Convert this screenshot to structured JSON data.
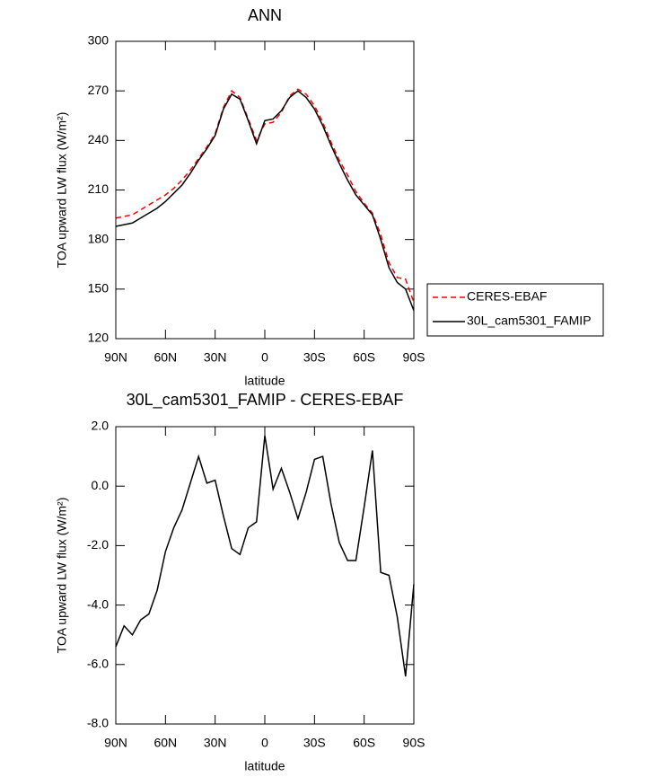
{
  "chart_data": [
    {
      "type": "line",
      "title": "ANN",
      "xlabel": "latitude",
      "ylabel": "TOA upward LW flux (W/m²)",
      "x": [
        90,
        85,
        80,
        75,
        70,
        65,
        60,
        55,
        50,
        45,
        40,
        35,
        30,
        25,
        20,
        15,
        10,
        5,
        0,
        -5,
        -10,
        -15,
        -20,
        -25,
        -30,
        -35,
        -40,
        -45,
        -50,
        -55,
        -60,
        -65,
        -70,
        -75,
        -80,
        -85,
        -90
      ],
      "series": [
        {
          "name": "CERES-EBAF",
          "color": "#ff0000",
          "style": "dashed",
          "values": [
            193,
            194,
            195,
            198,
            201,
            204,
            207,
            211,
            216,
            222,
            229,
            236,
            244,
            260,
            270,
            266,
            253,
            240,
            250,
            251,
            257,
            267,
            271,
            268,
            261,
            251,
            239,
            228,
            219,
            209,
            202,
            196,
            183,
            166,
            157,
            156,
            142
          ]
        },
        {
          "name": "30L_cam5301_FAMIP",
          "color": "#000000",
          "style": "solid",
          "values": [
            188,
            189,
            190,
            193,
            196,
            199,
            203,
            208,
            213,
            220,
            228,
            235,
            243,
            259,
            268,
            265,
            252,
            238,
            252,
            253,
            258,
            266,
            270,
            266,
            259,
            249,
            237,
            226,
            216,
            207,
            201,
            195,
            180,
            163,
            154,
            150,
            137
          ]
        }
      ],
      "xlim": [
        90,
        -90
      ],
      "xticks": [
        {
          "value": 90,
          "label": "90N"
        },
        {
          "value": 60,
          "label": "60N"
        },
        {
          "value": 30,
          "label": "30N"
        },
        0,
        {
          "value": -30,
          "label": "30S"
        },
        {
          "value": -60,
          "label": "60S"
        },
        {
          "value": -90,
          "label": "90S"
        }
      ],
      "ylim": [
        120,
        300
      ],
      "yticks": [
        120,
        150,
        180,
        210,
        240,
        270,
        300
      ],
      "legend": "right"
    },
    {
      "type": "line",
      "title": "30L_cam5301_FAMIP - CERES-EBAF",
      "xlabel": "latitude",
      "ylabel": "TOA upward LW flux (W/m²)",
      "x": [
        90,
        85,
        80,
        75,
        70,
        65,
        60,
        55,
        50,
        45,
        40,
        35,
        30,
        25,
        20,
        15,
        10,
        5,
        0,
        -5,
        -10,
        -15,
        -20,
        -25,
        -30,
        -35,
        -40,
        -45,
        -50,
        -55,
        -60,
        -65,
        -70,
        -75,
        -80,
        -85,
        -90
      ],
      "color": "#000000",
      "values": [
        -5.4,
        -4.7,
        -5.0,
        -4.5,
        -4.3,
        -3.5,
        -2.2,
        -1.4,
        -0.8,
        0.1,
        1.0,
        0.1,
        0.2,
        -1.0,
        -2.1,
        -2.3,
        -1.4,
        -1.2,
        1.7,
        -0.1,
        0.6,
        -0.2,
        -1.1,
        -0.2,
        0.9,
        1.0,
        -0.6,
        -1.9,
        -2.5,
        -2.5,
        -0.7,
        1.2,
        -2.9,
        -3.0,
        -4.4,
        -6.4,
        -3.3
      ],
      "xlim": [
        90,
        -90
      ],
      "xticks": [
        {
          "value": 90,
          "label": "90N"
        },
        {
          "value": 60,
          "label": "60N"
        },
        {
          "value": 30,
          "label": "30N"
        },
        0,
        {
          "value": -30,
          "label": "30S"
        },
        {
          "value": -60,
          "label": "60S"
        },
        {
          "value": -90,
          "label": "90S"
        }
      ],
      "ylim": [
        -8,
        2
      ],
      "yticks": [
        {
          "value": -8,
          "label": "-8.0"
        },
        {
          "value": -6,
          "label": "-6.0"
        },
        {
          "value": -4,
          "label": "-4.0"
        },
        {
          "value": -2,
          "label": "-2.0"
        },
        {
          "value": 0,
          "label": "0.0"
        },
        {
          "value": 2,
          "label": "2.0"
        }
      ]
    }
  ]
}
